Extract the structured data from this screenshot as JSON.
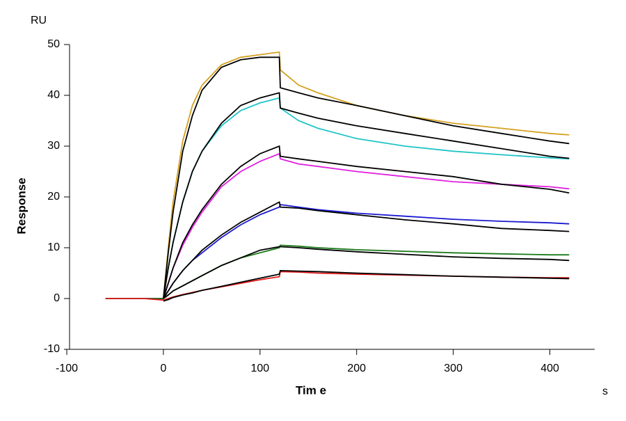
{
  "chart_data": {
    "type": "line",
    "y_unit": "RU",
    "ylabel": "Response",
    "xlabel": "Tim e",
    "x_unit": "s",
    "x": [
      -60,
      -40,
      -20,
      0,
      5,
      10,
      20,
      30,
      40,
      60,
      80,
      100,
      120,
      121,
      140,
      160,
      200,
      250,
      300,
      350,
      400,
      420
    ],
    "series": [
      {
        "color": "#d4a020",
        "values": [
          0,
          0,
          0,
          0,
          10,
          19,
          31,
          38,
          42,
          46,
          47.5,
          48,
          48.5,
          45,
          42,
          40.5,
          38,
          36,
          34.5,
          33.5,
          32.5,
          32.2
        ]
      },
      {
        "color": "#20c4c8",
        "values": [
          0,
          0,
          0,
          0,
          6,
          11,
          19,
          25,
          29,
          34,
          37,
          38.5,
          39.5,
          37.5,
          35,
          33.5,
          31.5,
          30,
          29,
          28.3,
          27.7,
          27.5
        ]
      },
      {
        "color": "#e020e0",
        "values": [
          0,
          0,
          0,
          0,
          3,
          6,
          10.5,
          14,
          17,
          22,
          25,
          27,
          28.5,
          27.5,
          26.5,
          26,
          25,
          24,
          23,
          22.5,
          22,
          21.6
        ]
      },
      {
        "color": "#1a1ad0",
        "values": [
          0,
          0,
          0,
          0,
          1.5,
          3,
          5.5,
          7.5,
          9,
          12,
          14.5,
          16.5,
          18,
          18.5,
          18,
          17.5,
          16.8,
          16.2,
          15.6,
          15.2,
          14.9,
          14.7
        ]
      },
      {
        "color": "#1a7a1a",
        "values": [
          0,
          0,
          0,
          0,
          0.7,
          1.5,
          2.5,
          3.5,
          4.5,
          6.5,
          8,
          9,
          10,
          10.5,
          10.3,
          10,
          9.6,
          9.3,
          9,
          8.8,
          8.6,
          8.6
        ]
      },
      {
        "color": "#e01a1a",
        "values": [
          0,
          0,
          0,
          -0.3,
          0,
          0.3,
          0.8,
          1.2,
          1.6,
          2.3,
          3,
          3.7,
          4.3,
          5.3,
          5.2,
          5,
          4.8,
          4.6,
          4.4,
          4.2,
          4.1,
          4.1
        ]
      },
      {
        "color": "#000000",
        "values": [
          null,
          null,
          null,
          0,
          9,
          17,
          29,
          36,
          41,
          45.5,
          47,
          47.5,
          47.5,
          41.5,
          40.5,
          39.5,
          38,
          36,
          34,
          32.5,
          31,
          30.5
        ]
      },
      {
        "color": "#000000",
        "values": [
          null,
          null,
          null,
          0,
          6,
          11,
          19,
          25,
          29,
          34.5,
          38,
          39.5,
          40.5,
          37.5,
          36.5,
          35.5,
          34,
          32.5,
          31,
          29.5,
          28,
          27.6
        ]
      },
      {
        "color": "#000000",
        "values": [
          null,
          null,
          null,
          0,
          3,
          6,
          11,
          14.5,
          17.5,
          22.5,
          26,
          28.5,
          30,
          28,
          27.5,
          27,
          26,
          25,
          24,
          22.5,
          21.5,
          20.8
        ]
      },
      {
        "color": "#000000",
        "values": [
          null,
          null,
          null,
          0,
          1.5,
          3,
          5.5,
          7.5,
          9.5,
          12.5,
          15,
          17,
          19,
          18,
          17.8,
          17.3,
          16.5,
          15.5,
          14.7,
          13.8,
          13.4,
          13.2
        ]
      },
      {
        "color": "#000000",
        "values": [
          null,
          null,
          null,
          0,
          0.7,
          1.5,
          2.5,
          3.5,
          4.5,
          6.5,
          8,
          9.5,
          10.2,
          10.2,
          10,
          9.7,
          9.2,
          8.7,
          8.2,
          7.9,
          7.7,
          7.5
        ]
      },
      {
        "color": "#000000",
        "values": [
          null,
          null,
          null,
          -0.5,
          -0.2,
          0.2,
          0.7,
          1.1,
          1.6,
          2.4,
          3.2,
          4,
          4.8,
          5.5,
          5.4,
          5.3,
          5.0,
          4.7,
          4.4,
          4.2,
          4.0,
          3.9
        ]
      }
    ],
    "xlim": [
      -100,
      450
    ],
    "xticks": [
      -100,
      0,
      100,
      200,
      300,
      400
    ],
    "ylim": [
      -10,
      50
    ],
    "yticks": [
      -10,
      0,
      10,
      20,
      30,
      40,
      50
    ]
  }
}
